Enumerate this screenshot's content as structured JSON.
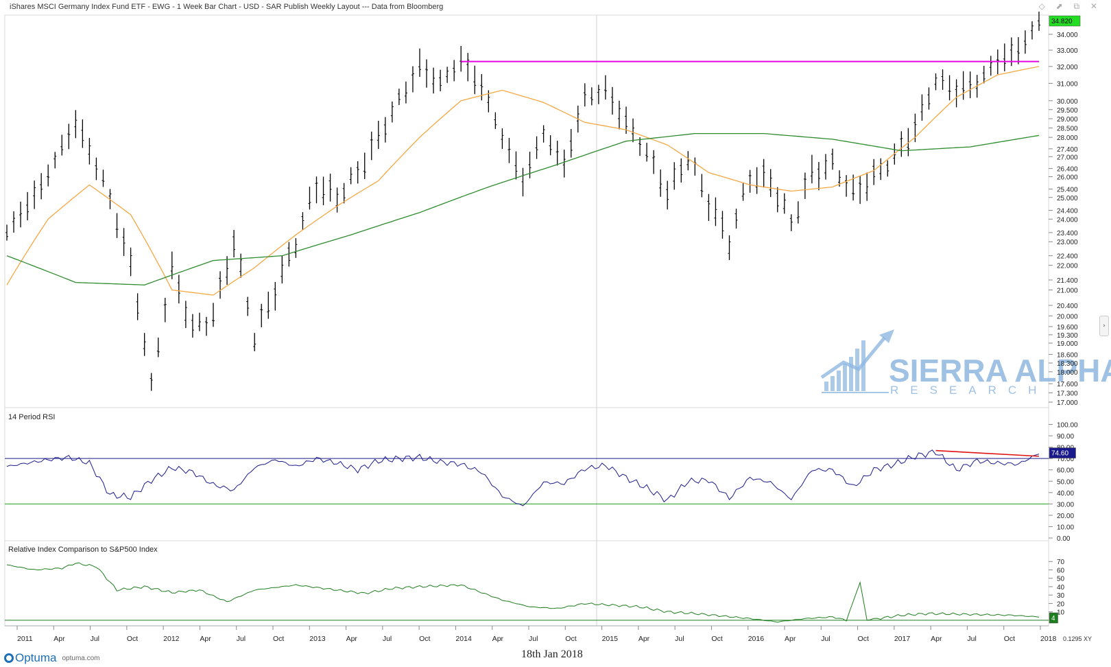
{
  "header": {
    "title": "iShares MSCI Germany Index Fund ETF - EWG - 1 Week Bar Chart - USD - SAR Publish Weekly Layout --- Data from Bloomberg",
    "window_icons": "◇ ⬈ ⧉ ✕"
  },
  "footer": {
    "date": "18th Jan 2018",
    "brand": "Optuma",
    "url": "optuma.com",
    "zoom": "0.1295",
    "zoom_tag": "XY"
  },
  "watermark": {
    "line1": "SIERRA ALPHA",
    "line2": "RESEARCH",
    "color": "#8fb8e0"
  },
  "colors": {
    "price_bars": "#000000",
    "ma_short": "#f5a742",
    "ma_long": "#2e8b2e",
    "resistance": "#e000e0",
    "rsi_line": "#1a1a8c",
    "rsi_upper": "#1a1a8c",
    "rsi_lower": "#1aa01a",
    "rsi_divergence": "#e01010",
    "relative_line": "#1e7d1e",
    "last_price_bg": "#22dd22",
    "rsi_value_bg": "#1a1a8c"
  },
  "chart_data": [
    {
      "type": "line",
      "title": "iShares MSCI Germany Index Fund ETF - EWG - 1 Week Bar Chart",
      "series": [
        {
          "kind": "ohlc_bars",
          "values_approx": [
            [
              0,
              23.4
            ],
            [
              5,
              25.5
            ],
            [
              10,
              28.8
            ],
            [
              14,
              25.8
            ],
            [
              18,
              22.0
            ],
            [
              21,
              17.5
            ],
            [
              24,
              21.8
            ],
            [
              27,
              19.5
            ],
            [
              30,
              20.0
            ],
            [
              33,
              23.0
            ],
            [
              36,
              19.2
            ],
            [
              39,
              21.0
            ],
            [
              42,
              23.0
            ],
            [
              45,
              25.6
            ],
            [
              48,
              25.0
            ],
            [
              51,
              26.2
            ],
            [
              54,
              28.0
            ],
            [
              57,
              30.0
            ],
            [
              60,
              32.0
            ],
            [
              63,
              31.0
            ],
            [
              66,
              32.4
            ],
            [
              69,
              30.8
            ],
            [
              72,
              28.0
            ],
            [
              75,
              25.8
            ],
            [
              78,
              28.2
            ],
            [
              81,
              26.6
            ],
            [
              84,
              30.2
            ],
            [
              87,
              30.6
            ],
            [
              90,
              28.8
            ],
            [
              93,
              27.2
            ],
            [
              96,
              25.2
            ],
            [
              99,
              27.0
            ],
            [
              102,
              24.8
            ],
            [
              105,
              23.0
            ],
            [
              108,
              26.0
            ],
            [
              111,
              25.8
            ],
            [
              114,
              23.8
            ],
            [
              117,
              26.2
            ],
            [
              120,
              26.6
            ],
            [
              123,
              25.2
            ],
            [
              126,
              26.0
            ],
            [
              129,
              27.0
            ],
            [
              132,
              28.5
            ],
            [
              135,
              31.2
            ],
            [
              138,
              30.6
            ],
            [
              141,
              31.0
            ],
            [
              144,
              32.4
            ],
            [
              147,
              33.0
            ],
            [
              150,
              34.8
            ]
          ]
        },
        {
          "kind": "moving_average_short",
          "values_approx": [
            [
              0,
              21.2
            ],
            [
              6,
              24.0
            ],
            [
              12,
              25.6
            ],
            [
              18,
              24.2
            ],
            [
              24,
              21.0
            ],
            [
              30,
              20.8
            ],
            [
              36,
              21.9
            ],
            [
              42,
              23.3
            ],
            [
              48,
              24.6
            ],
            [
              54,
              25.8
            ],
            [
              60,
              28.0
            ],
            [
              66,
              30.0
            ],
            [
              72,
              30.6
            ],
            [
              78,
              29.9
            ],
            [
              84,
              28.8
            ],
            [
              90,
              28.4
            ],
            [
              96,
              27.6
            ],
            [
              102,
              26.2
            ],
            [
              108,
              25.6
            ],
            [
              114,
              25.3
            ],
            [
              120,
              25.5
            ],
            [
              126,
              26.3
            ],
            [
              132,
              28.0
            ],
            [
              138,
              30.2
            ],
            [
              144,
              31.5
            ],
            [
              150,
              32.0
            ]
          ]
        },
        {
          "kind": "moving_average_long",
          "values_approx": [
            [
              0,
              22.4
            ],
            [
              10,
              21.3
            ],
            [
              20,
              21.2
            ],
            [
              30,
              22.2
            ],
            [
              40,
              22.4
            ],
            [
              50,
              23.3
            ],
            [
              60,
              24.3
            ],
            [
              70,
              25.5
            ],
            [
              80,
              26.6
            ],
            [
              90,
              27.8
            ],
            [
              100,
              28.2
            ],
            [
              110,
              28.2
            ],
            [
              120,
              27.9
            ],
            [
              130,
              27.3
            ],
            [
              140,
              27.5
            ],
            [
              150,
              28.1
            ]
          ]
        },
        {
          "kind": "resistance",
          "value": 32.3,
          "from": 66,
          "to": 150
        }
      ],
      "y_ticks": [
        "34.000",
        "33.000",
        "32.000",
        "31.000",
        "30.000",
        "29.500",
        "29.000",
        "28.500",
        "28.000",
        "27.400",
        "27.000",
        "26.400",
        "26.000",
        "25.400",
        "25.000",
        "24.400",
        "24.000",
        "23.400",
        "23.000",
        "22.400",
        "22.000",
        "21.400",
        "21.000",
        "20.400",
        "20.000",
        "19.600",
        "19.300",
        "19.000",
        "18.600",
        "18.300",
        "18.000",
        "17.600",
        "17.300",
        "17.000"
      ],
      "last_value": "34.820"
    },
    {
      "type": "line",
      "title": "14 Period RSI",
      "values_approx": [
        [
          0,
          63
        ],
        [
          3,
          66
        ],
        [
          6,
          69
        ],
        [
          9,
          71
        ],
        [
          12,
          66
        ],
        [
          15,
          38
        ],
        [
          18,
          36
        ],
        [
          21,
          51
        ],
        [
          24,
          62
        ],
        [
          27,
          58
        ],
        [
          30,
          47
        ],
        [
          33,
          42
        ],
        [
          36,
          62
        ],
        [
          39,
          69
        ],
        [
          42,
          63
        ],
        [
          45,
          70
        ],
        [
          48,
          66
        ],
        [
          51,
          60
        ],
        [
          54,
          68
        ],
        [
          57,
          70
        ],
        [
          60,
          71
        ],
        [
          63,
          67
        ],
        [
          66,
          65
        ],
        [
          69,
          58
        ],
        [
          72,
          37
        ],
        [
          75,
          28
        ],
        [
          78,
          49
        ],
        [
          81,
          48
        ],
        [
          84,
          61
        ],
        [
          87,
          64
        ],
        [
          90,
          53
        ],
        [
          93,
          44
        ],
        [
          96,
          33
        ],
        [
          99,
          50
        ],
        [
          102,
          51
        ],
        [
          105,
          35
        ],
        [
          108,
          53
        ],
        [
          111,
          49
        ],
        [
          114,
          34
        ],
        [
          117,
          60
        ],
        [
          120,
          60
        ],
        [
          123,
          45
        ],
        [
          126,
          60
        ],
        [
          129,
          65
        ],
        [
          132,
          72
        ],
        [
          135,
          76
        ],
        [
          138,
          60
        ],
        [
          141,
          68
        ],
        [
          144,
          66
        ],
        [
          147,
          65
        ],
        [
          150,
          74.6
        ]
      ],
      "y_ticks": [
        "100.00",
        "90.00",
        "80.00",
        "70.00",
        "60.00",
        "50.00",
        "40.00",
        "30.00",
        "20.00",
        "10.00",
        "0.00"
      ],
      "upper_level": 70,
      "lower_level": 30,
      "last_value": "74.60"
    },
    {
      "type": "line",
      "title": "Relative Index Comparison to S&P500 Index",
      "values_approx": [
        [
          0,
          66
        ],
        [
          4,
          60
        ],
        [
          8,
          62
        ],
        [
          10,
          68
        ],
        [
          13,
          64
        ],
        [
          16,
          36
        ],
        [
          20,
          40
        ],
        [
          24,
          33
        ],
        [
          28,
          36
        ],
        [
          32,
          22
        ],
        [
          36,
          36
        ],
        [
          42,
          42
        ],
        [
          46,
          38
        ],
        [
          52,
          32
        ],
        [
          56,
          38
        ],
        [
          60,
          40
        ],
        [
          66,
          42
        ],
        [
          72,
          24
        ],
        [
          76,
          16
        ],
        [
          80,
          14
        ],
        [
          84,
          20
        ],
        [
          88,
          18
        ],
        [
          92,
          16
        ],
        [
          96,
          10
        ],
        [
          100,
          8
        ],
        [
          104,
          5
        ],
        [
          108,
          2
        ],
        [
          112,
          -2
        ],
        [
          116,
          2
        ],
        [
          120,
          4
        ],
        [
          122,
          0
        ],
        [
          124,
          45
        ],
        [
          125,
          0
        ],
        [
          130,
          6
        ],
        [
          134,
          8
        ],
        [
          140,
          7
        ],
        [
          146,
          6
        ],
        [
          150,
          4
        ]
      ],
      "y_ticks": [
        "70",
        "60",
        "50",
        "40",
        "30",
        "20",
        "10"
      ],
      "last_value": "4"
    }
  ],
  "x_axis": {
    "ticks": [
      "2011",
      "Apr",
      "Jul",
      "Oct",
      "2012",
      "Apr",
      "Jul",
      "Oct",
      "2013",
      "Apr",
      "Jul",
      "Oct",
      "2014",
      "Apr",
      "Jul",
      "Oct",
      "2015",
      "Apr",
      "Jul",
      "Oct",
      "2016",
      "Apr",
      "Jul",
      "Oct",
      "2017",
      "Apr",
      "Jul",
      "Oct",
      "2018"
    ]
  }
}
